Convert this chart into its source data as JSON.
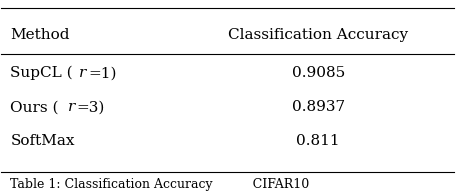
{
  "col_headers": [
    "Method",
    "Classification Accuracy"
  ],
  "rows": [
    [
      "SupCL (r=1)",
      "0.9085"
    ],
    [
      "Ours (r=3)",
      "0.8937"
    ],
    [
      "SoftMax",
      "0.811"
    ]
  ],
  "caption": "Table 1: Classification Accuracy          CIFAR10",
  "bg_color": "#ffffff",
  "text_color": "#000000",
  "line_color": "#000000",
  "font_size": 11,
  "caption_font_size": 9
}
